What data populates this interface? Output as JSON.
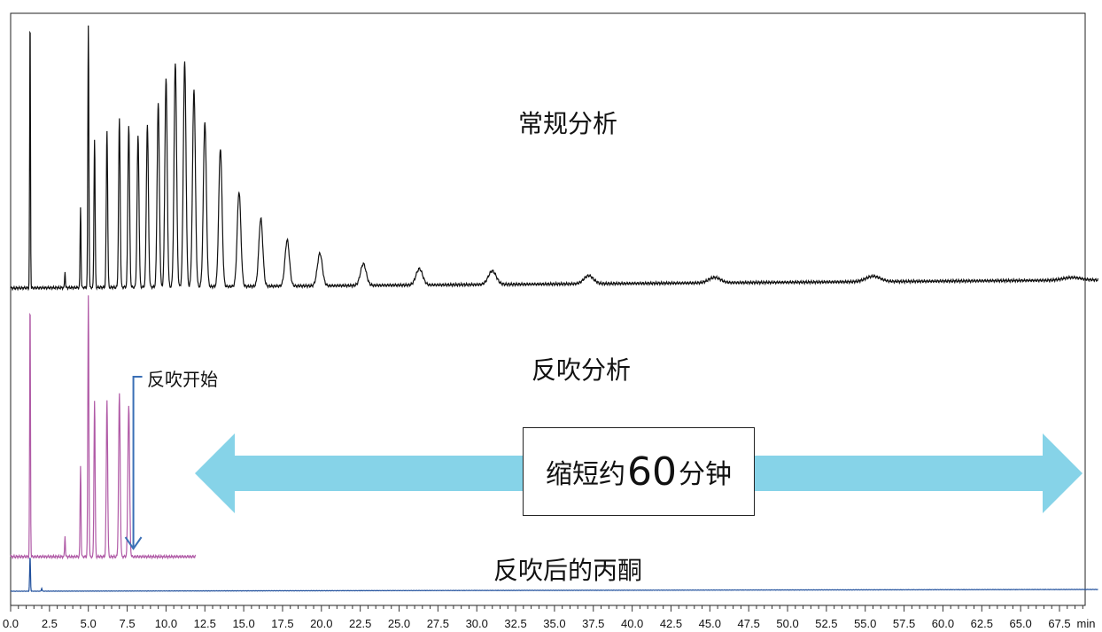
{
  "chart_data": {
    "type": "line",
    "xlabel": "min",
    "xlim": [
      0,
      70
    ],
    "x_ticks": [
      "0.0",
      "2.5",
      "5.0",
      "7.5",
      "10.0",
      "12.5",
      "15.0",
      "17.5",
      "20.0",
      "22.5",
      "25.0",
      "27.5",
      "30.0",
      "32.5",
      "35.0",
      "37.5",
      "40.0",
      "42.5",
      "45.0",
      "47.5",
      "50.0",
      "52.5",
      "55.0",
      "57.5",
      "60.0",
      "62.5",
      "65.0",
      "67.5"
    ],
    "x_unit_label": "min",
    "colors": {
      "normal": "#111111",
      "backflush": "#b05aa6",
      "acetone": "#1f4f9c",
      "arrow": "#86d3e8",
      "marker": "#3a6fb5"
    },
    "series": [
      {
        "name": "常规分析",
        "baseline_start": 0,
        "baseline_end": 0.03,
        "peaks": [
          {
            "x": 1.25,
            "h": 1.02
          },
          {
            "x": 3.5,
            "h": 0.06
          },
          {
            "x": 4.5,
            "h": 0.3
          },
          {
            "x": 5.0,
            "h": 0.97
          },
          {
            "x": 5.4,
            "h": 0.55
          },
          {
            "x": 6.2,
            "h": 0.58
          },
          {
            "x": 7.0,
            "h": 0.62
          },
          {
            "x": 7.6,
            "h": 0.6
          },
          {
            "x": 8.2,
            "h": 0.56
          },
          {
            "x": 8.8,
            "h": 0.6
          },
          {
            "x": 9.5,
            "h": 0.68
          },
          {
            "x": 10.0,
            "h": 0.77
          },
          {
            "x": 10.6,
            "h": 0.83
          },
          {
            "x": 11.2,
            "h": 0.83
          },
          {
            "x": 11.8,
            "h": 0.73
          },
          {
            "x": 12.5,
            "h": 0.61
          },
          {
            "x": 13.5,
            "h": 0.51
          },
          {
            "x": 14.7,
            "h": 0.35
          },
          {
            "x": 16.1,
            "h": 0.25
          },
          {
            "x": 17.8,
            "h": 0.17
          },
          {
            "x": 19.9,
            "h": 0.12
          },
          {
            "x": 22.7,
            "h": 0.08
          },
          {
            "x": 26.3,
            "h": 0.06
          },
          {
            "x": 31.0,
            "h": 0.05
          },
          {
            "x": 37.2,
            "h": 0.03
          },
          {
            "x": 45.3,
            "h": 0.02
          },
          {
            "x": 55.5,
            "h": 0.02
          },
          {
            "x": 68.3,
            "h": 0.01
          }
        ]
      },
      {
        "name": "反吹分析",
        "baseline_start": 0,
        "baseline_end": 0,
        "end_x": 11.9,
        "peaks": [
          {
            "x": 1.25,
            "h": 1.0
          },
          {
            "x": 3.5,
            "h": 0.08
          },
          {
            "x": 4.5,
            "h": 0.35
          },
          {
            "x": 5.0,
            "h": 1.0
          },
          {
            "x": 5.4,
            "h": 0.6
          },
          {
            "x": 6.2,
            "h": 0.6
          },
          {
            "x": 7.0,
            "h": 0.62
          },
          {
            "x": 7.6,
            "h": 0.58
          }
        ]
      },
      {
        "name": "反吹后的丙酮",
        "baseline_start": 0,
        "baseline_end": 0.05,
        "peaks": [
          {
            "x": 1.25,
            "h": 1.0
          },
          {
            "x": 2.0,
            "h": 0.08
          }
        ]
      }
    ]
  },
  "labels": {
    "normal": "常规分析",
    "backflush": "反吹分析",
    "acetone": "反吹后的丙酮",
    "backflush_start": "反吹开始",
    "saving_pre": "缩短约",
    "saving_num": "60",
    "saving_post": "分钟"
  },
  "annotations": {
    "backflush_start_x": 7.9,
    "saving_arrow_from_x": 12.0,
    "saving_arrow_to_x": 70.0
  }
}
